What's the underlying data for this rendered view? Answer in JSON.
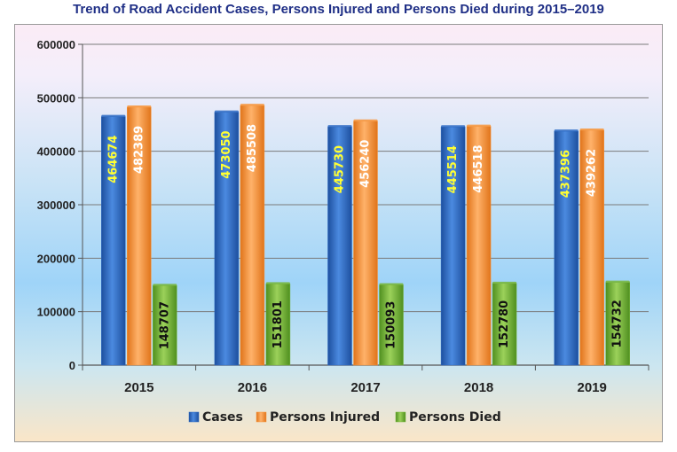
{
  "chart_data": {
    "type": "bar",
    "title": "Trend of Road Accident Cases, Persons Injured and Persons Died during 2015–2019",
    "categories": [
      "2015",
      "2016",
      "2017",
      "2018",
      "2019"
    ],
    "series": [
      {
        "name": "Cases",
        "values": [
          464674,
          473050,
          445730,
          445514,
          437396
        ],
        "color": "#2e6bc4",
        "label_color": "#ffff33"
      },
      {
        "name": "Persons Injured",
        "values": [
          482389,
          485508,
          456240,
          446518,
          439262
        ],
        "color": "#f7953b",
        "label_color": "#ffffff"
      },
      {
        "name": "Persons Died",
        "values": [
          148707,
          151801,
          150093,
          152780,
          154732
        ],
        "color": "#77b53a",
        "label_color": "#111111"
      }
    ],
    "yticks": [
      "0",
      "100000",
      "200000",
      "300000",
      "400000",
      "500000",
      "600000"
    ],
    "ylim": [
      0,
      600000
    ],
    "grid": true,
    "legend_position": "bottom",
    "xlabel": "",
    "ylabel": ""
  }
}
